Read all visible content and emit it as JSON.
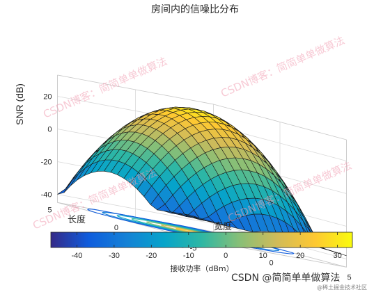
{
  "chart_data": {
    "type": "surface",
    "title": "房间内的信噪比分布",
    "xlabel": "宽度",
    "ylabel": "长度",
    "zlabel": "SNR (dB)",
    "xlim": [
      -5,
      5
    ],
    "ylim": [
      -5,
      5
    ],
    "zlim": [
      -45,
      33
    ],
    "x_ticks": [
      "-5",
      "0",
      "5"
    ],
    "y_ticks": [
      "-5",
      "0",
      "5"
    ],
    "z_ticks": [
      "-40",
      "-20",
      "0",
      "20"
    ],
    "surface_peak_db": 30,
    "surface_corner_db": [
      -27,
      -42,
      -38,
      -36
    ],
    "grid_points": 21,
    "contour_levels": 7,
    "colormap": "parula",
    "grid": true,
    "colorbar": {
      "label": "接收功率（dBm）",
      "range": [
        -47,
        34
      ],
      "ticks": [
        "-40",
        "-30",
        "-20",
        "-10",
        "0",
        "10",
        "20",
        "30"
      ]
    }
  },
  "watermark": {
    "text": "CSDN博客：简简单单做算法"
  },
  "credit": {
    "main": "CSDN @简简单单做算法",
    "small": "@稀土掘金技术社区"
  }
}
